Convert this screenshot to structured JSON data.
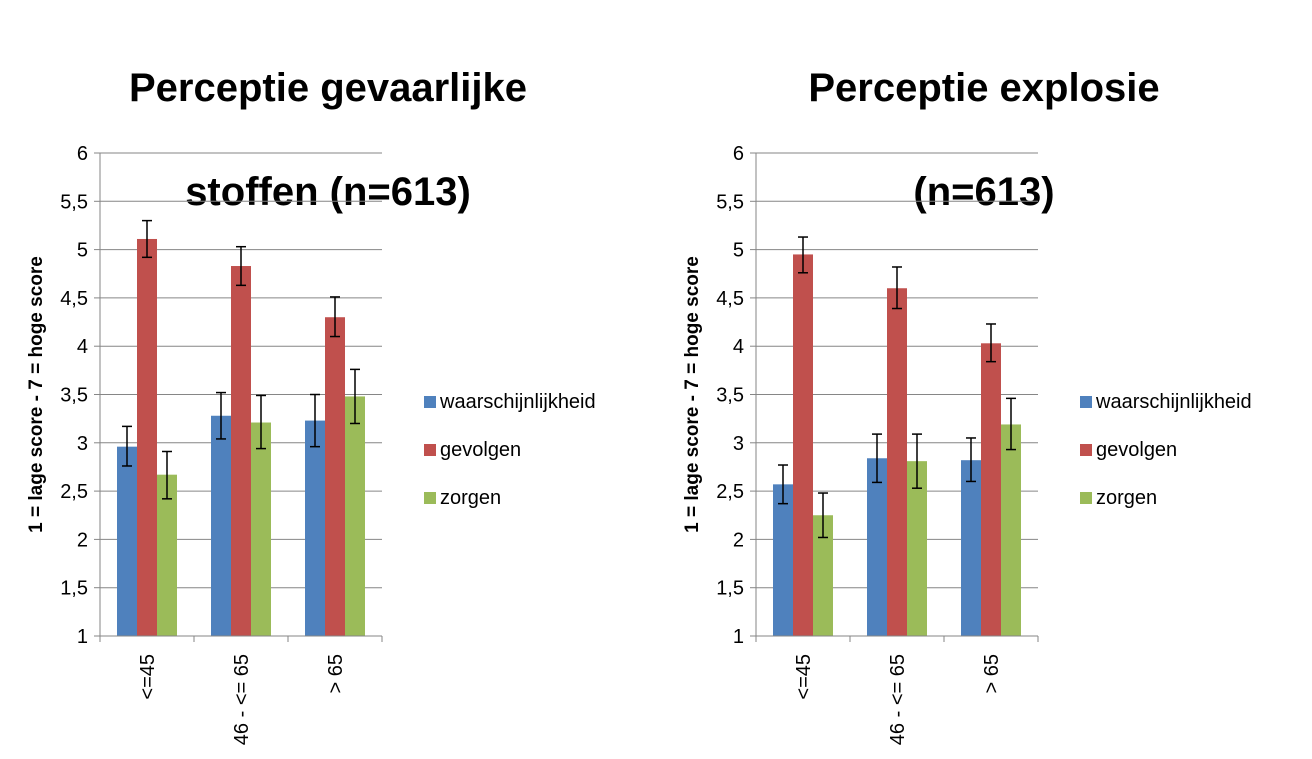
{
  "chart_data": [
    {
      "type": "bar",
      "title": "Perceptie gevaarlijke stoffen (n=613)",
      "title_lines": [
        "Perceptie gevaarlijke",
        "stoffen (n=613)"
      ],
      "ylabel": "1 =  lage score - 7 = hoge score",
      "xlabel": "",
      "ylim": [
        1,
        6
      ],
      "yticks": [
        1,
        1.5,
        2,
        2.5,
        3,
        3.5,
        4,
        4.5,
        5,
        5.5,
        6
      ],
      "ytick_labels": [
        "1",
        "1,5",
        "2",
        "2,5",
        "3",
        "3,5",
        "4",
        "4,5",
        "5",
        "5,5",
        "6"
      ],
      "categories": [
        "<=45",
        "46 - <= 65",
        "> 65"
      ],
      "series": [
        {
          "name": "waarschijnlijkheid",
          "color": "#4F81BD",
          "values": [
            2.96,
            3.28,
            3.23
          ],
          "err_low": [
            2.76,
            3.04,
            2.96
          ],
          "err_high": [
            3.17,
            3.52,
            3.5
          ]
        },
        {
          "name": "gevolgen",
          "color": "#C0504D",
          "values": [
            5.11,
            4.83,
            4.3
          ],
          "err_low": [
            4.92,
            4.63,
            4.1
          ],
          "err_high": [
            5.3,
            5.03,
            4.51
          ]
        },
        {
          "name": "zorgen",
          "color": "#9BBB59",
          "values": [
            2.67,
            3.21,
            3.48
          ],
          "err_low": [
            2.42,
            2.94,
            3.2
          ],
          "err_high": [
            2.91,
            3.49,
            3.76
          ]
        }
      ],
      "grid": true,
      "legend_position": "right"
    },
    {
      "type": "bar",
      "title": "Perceptie explosie (n=613)",
      "title_lines": [
        "Perceptie explosie",
        "(n=613)"
      ],
      "ylabel": "1 =  lage score - 7 = hoge score",
      "xlabel": "",
      "ylim": [
        1,
        6
      ],
      "yticks": [
        1,
        1.5,
        2,
        2.5,
        3,
        3.5,
        4,
        4.5,
        5,
        5.5,
        6
      ],
      "ytick_labels": [
        "1",
        "1,5",
        "2",
        "2,5",
        "3",
        "3,5",
        "4",
        "4,5",
        "5",
        "5,5",
        "6"
      ],
      "categories": [
        "<=45",
        "46 - <= 65",
        "> 65"
      ],
      "series": [
        {
          "name": "waarschijnlijkheid",
          "color": "#4F81BD",
          "values": [
            2.57,
            2.84,
            2.82
          ],
          "err_low": [
            2.37,
            2.59,
            2.6
          ],
          "err_high": [
            2.77,
            3.09,
            3.05
          ]
        },
        {
          "name": "gevolgen",
          "color": "#C0504D",
          "values": [
            4.95,
            4.6,
            4.03
          ],
          "err_low": [
            4.76,
            4.39,
            3.84
          ],
          "err_high": [
            5.13,
            4.82,
            4.23
          ]
        },
        {
          "name": "zorgen",
          "color": "#9BBB59",
          "values": [
            2.25,
            2.81,
            3.19
          ],
          "err_low": [
            2.02,
            2.53,
            2.93
          ],
          "err_high": [
            2.48,
            3.09,
            3.46
          ]
        }
      ],
      "grid": true,
      "legend_position": "right"
    }
  ]
}
